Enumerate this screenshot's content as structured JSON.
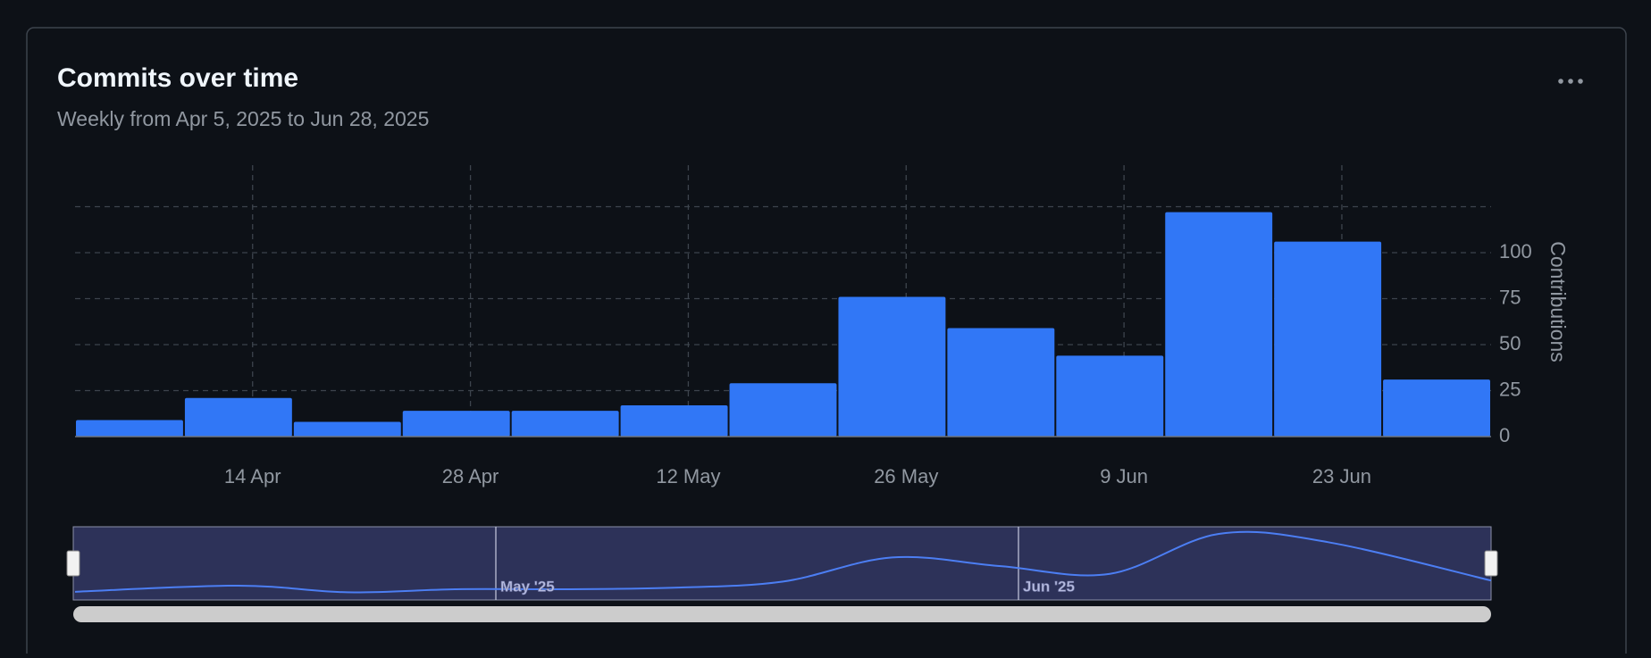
{
  "chart_data": {
    "type": "bar",
    "title": "Commits over time",
    "subtitle": "Weekly from Apr 5, 2025 to Jun 28, 2025",
    "y_label": "Contributions",
    "categories": [
      null,
      null,
      null,
      null,
      null,
      null,
      null,
      null,
      null,
      null,
      null,
      null,
      null
    ],
    "values": [
      9,
      21,
      8,
      14,
      14,
      17,
      29,
      76,
      59,
      44,
      122,
      106,
      31
    ],
    "color": "#3177f6",
    "ylim": [
      0,
      125
    ],
    "yticks": [
      0,
      25,
      50,
      75,
      100
    ],
    "xtick_labels": [
      "14 Apr",
      "28 Apr",
      "12 May",
      "26 May",
      "9 Jun",
      "23 Jun"
    ],
    "navigator_labels": [
      "May '25",
      "Jun '25"
    ],
    "grid": true
  }
}
